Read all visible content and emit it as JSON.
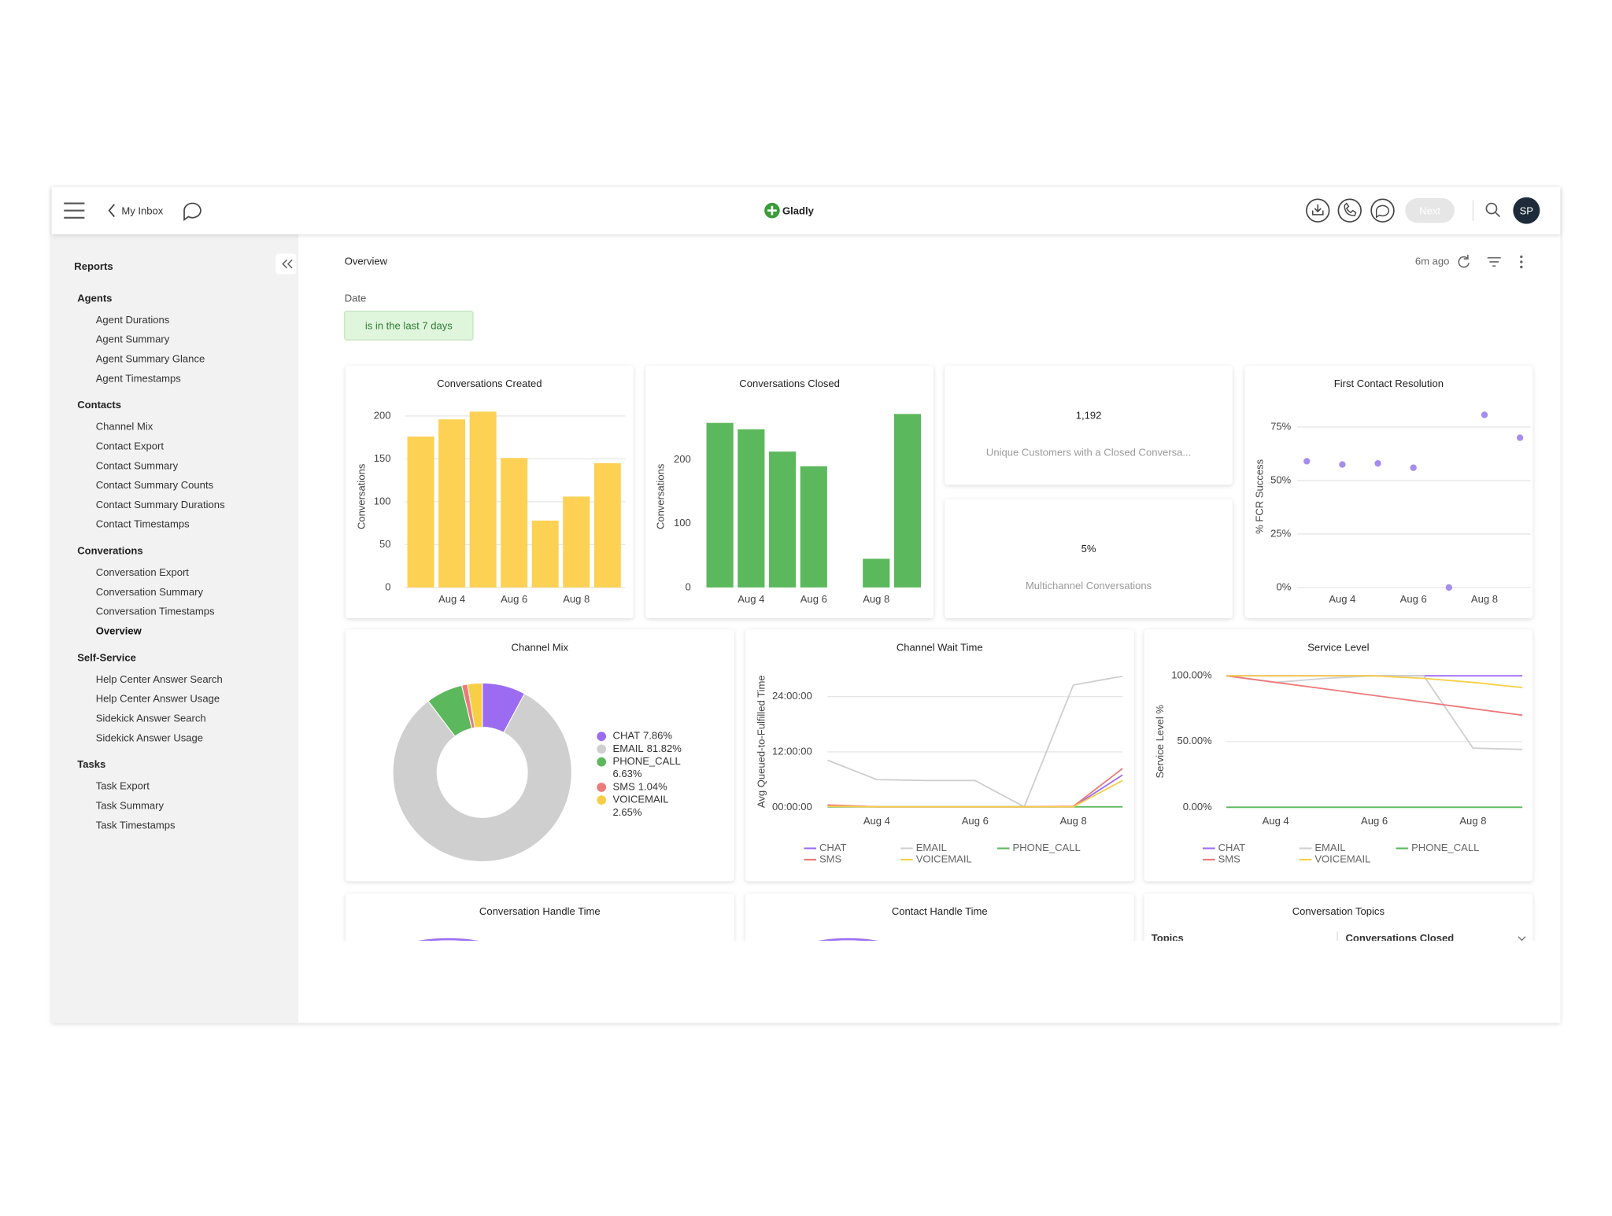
{
  "header": {
    "back_link": "My Inbox",
    "logo": "Gladly",
    "next_button": "Next",
    "avatar": "SP"
  },
  "sidebar": {
    "title": "Reports",
    "groups": [
      {
        "name": "Agents",
        "items": [
          "Agent Durations",
          "Agent Summary",
          "Agent Summary Glance",
          "Agent Timestamps"
        ]
      },
      {
        "name": "Contacts",
        "items": [
          "Channel Mix",
          "Contact Export",
          "Contact Summary",
          "Contact Summary Counts",
          "Contact Summary Durations",
          "Contact Timestamps"
        ]
      },
      {
        "name": "Converations",
        "items": [
          "Conversation Export",
          "Conversation Summary",
          "Conversation Timestamps",
          "Overview"
        ],
        "selected_item": 3
      },
      {
        "name": "Self-Service",
        "items": [
          "Help Center Answer Search",
          "Help Center Answer Usage",
          "Sidekick Answer Search",
          "Sidekick Answer Usage"
        ]
      },
      {
        "name": "Tasks",
        "items": [
          "Task Export",
          "Task Summary",
          "Task Timestamps"
        ]
      }
    ]
  },
  "main": {
    "title": "Overview",
    "updated": "6m ago",
    "filter": {
      "label": "Date",
      "value": "is in the last 7 days"
    }
  },
  "kpis": [
    {
      "value": "1,192",
      "label": "Unique Customers with a Closed Conversa..."
    },
    {
      "value": "5%",
      "label": "Multichannel Conversations"
    }
  ],
  "chart_data": [
    {
      "type": "bar",
      "title": "Conversations Created",
      "y_label": "Conversations",
      "categories": [
        null,
        "Aug 4",
        null,
        "Aug 6",
        null,
        "Aug 8",
        null
      ],
      "values": [
        176,
        196,
        205,
        151,
        78,
        106,
        145
      ],
      "color": "#fdd153",
      "ylim": [
        0,
        212
      ],
      "yticks": [
        0,
        50,
        100,
        150,
        200
      ],
      "grid": true
    },
    {
      "type": "bar",
      "title": "Conversations Closed",
      "y_label": "Conversations",
      "categories": [
        null,
        "Aug 4",
        null,
        "Aug 6",
        null,
        "Aug 8",
        null
      ],
      "values": [
        258,
        248,
        213,
        190,
        0,
        45,
        272
      ],
      "color": "#5cb85c",
      "ylim": [
        0,
        285
      ],
      "yticks": [
        0,
        100,
        200
      ],
      "grid": false
    },
    {
      "type": "scatter",
      "title": "First Contact Resolution",
      "y_label": "% FCR Success",
      "categories": [
        null,
        "Aug 4",
        null,
        "Aug 6",
        null,
        "Aug 8",
        null
      ],
      "values": [
        59,
        57.5,
        58,
        56,
        0,
        80.7,
        70
      ],
      "color": "#a58df0",
      "ylim": [
        0,
        85
      ],
      "yticks": [
        {
          "value": 0,
          "label": "0%"
        },
        {
          "value": 25,
          "label": "25%"
        },
        {
          "value": 50,
          "label": "50%"
        },
        {
          "value": 75,
          "label": "75%"
        }
      ],
      "grid": true
    },
    {
      "type": "pie",
      "title": "Channel Mix",
      "categories": [
        "CHAT",
        "EMAIL",
        "PHONE_CALL",
        "SMS",
        "VOICEMAIL"
      ],
      "values": [
        7.86,
        81.82,
        6.63,
        1.04,
        2.65
      ],
      "value_labels": [
        "7.86%",
        "81.82%",
        "6.63%",
        "1.04%",
        "2.65%"
      ],
      "colors": [
        "#9b6cf2",
        "#cfcfcf",
        "#5cb85c",
        "#ec7a7a",
        "#f7cf46"
      ]
    },
    {
      "type": "line",
      "title": "Channel Wait Time",
      "y_label": "Avg Queued-to-Fulfilled Time",
      "categories": [
        null,
        "Aug 4",
        null,
        "Aug 6",
        null,
        "Aug 8",
        null
      ],
      "series": [
        {
          "name": "CHAT",
          "color": "#9b6cf2",
          "values": [
            0.4,
            0.1,
            0.1,
            0.1,
            0.1,
            0.1,
            7
          ]
        },
        {
          "name": "EMAIL",
          "color": "#cfcfcf",
          "values": [
            10.2,
            6.0,
            5.8,
            5.8,
            0.1,
            26.5,
            28.4
          ]
        },
        {
          "name": "PHONE_CALL",
          "color": "#5cb85c",
          "values": [
            0.1,
            0.1,
            0.1,
            0.1,
            0.1,
            0.1,
            0.1
          ]
        },
        {
          "name": "SMS",
          "color": "#ec7a7a",
          "values": [
            0.5,
            0.1,
            0.1,
            0.1,
            0.1,
            0.2,
            8.4
          ]
        },
        {
          "name": "VOICEMAIL",
          "color": "#f7cf46",
          "values": [
            0.2,
            0.1,
            0.1,
            0.1,
            0.1,
            0.1,
            5.8
          ]
        }
      ],
      "ylim": [
        0,
        28.5
      ],
      "yticks": [
        {
          "value": 0,
          "label": "00:00:00"
        },
        {
          "value": 12,
          "label": "12:00:00"
        },
        {
          "value": 24,
          "label": "24:00:00"
        }
      ],
      "grid": true
    },
    {
      "type": "line",
      "title": "Service Level",
      "y_label": "Service Level %",
      "categories": [
        null,
        "Aug 4",
        null,
        "Aug 6",
        null,
        "Aug 8",
        null
      ],
      "series": [
        {
          "name": "CHAT",
          "color": "#9b6cf2",
          "values": [
            100,
            100,
            100,
            100,
            100,
            100,
            100
          ]
        },
        {
          "name": "EMAIL",
          "color": "#cfcfcf",
          "values": [
            100,
            95,
            98,
            100,
            100,
            45,
            44
          ]
        },
        {
          "name": "PHONE_CALL",
          "color": "#5cb85c",
          "values": [
            0,
            0,
            0,
            0,
            0,
            0,
            0
          ]
        },
        {
          "name": "SMS",
          "color": "#ec7a7a",
          "values": [
            100,
            95,
            90,
            85,
            80,
            75,
            70
          ]
        },
        {
          "name": "VOICEMAIL",
          "color": "#f7cf46",
          "values": [
            100,
            100,
            100,
            100,
            98,
            95,
            91
          ]
        }
      ],
      "ylim": [
        0,
        100
      ],
      "yticks": [
        {
          "value": 0,
          "label": "0.00%"
        },
        {
          "value": 50,
          "label": "50.00%"
        },
        {
          "value": 100,
          "label": "100.00%"
        }
      ],
      "grid": true
    }
  ],
  "table_stubs": [
    {
      "title": "Conversation Handle Time"
    },
    {
      "title": "Contact Handle Time"
    },
    {
      "title": "Conversation Topics",
      "columns": [
        "Topics",
        "Conversations Closed"
      ]
    }
  ]
}
